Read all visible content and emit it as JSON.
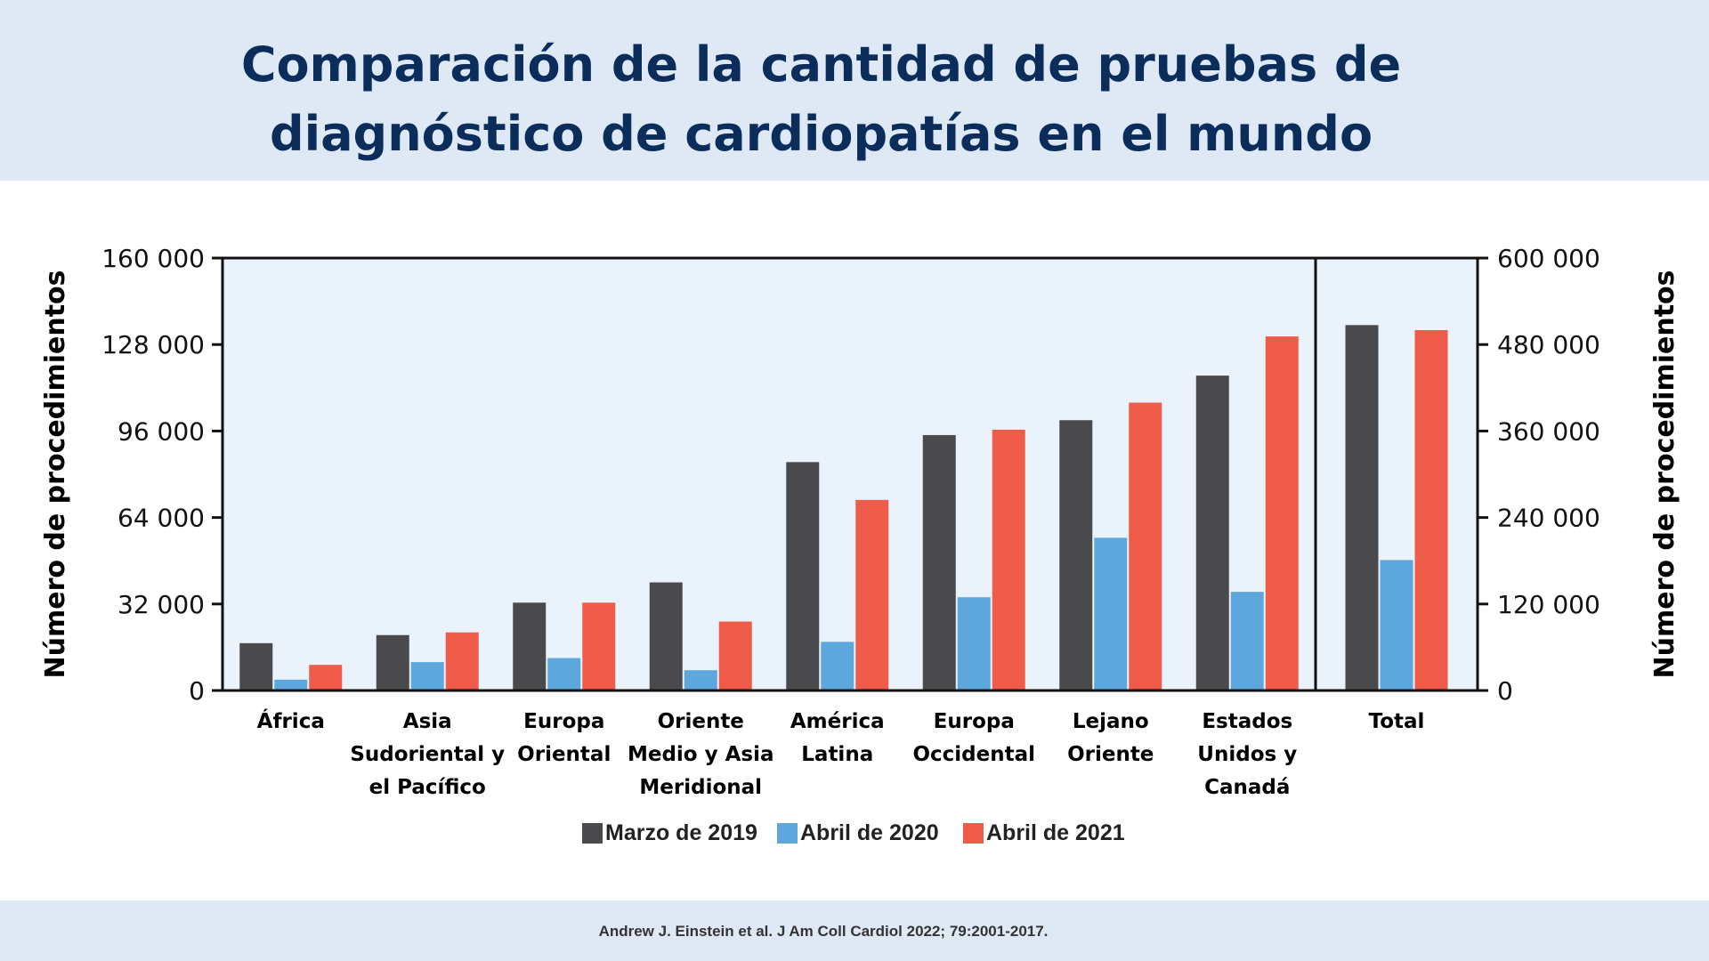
{
  "title_lines": [
    "Comparación de la cantidad de pruebas de",
    "diagnóstico de cardiopatías en el mundo"
  ],
  "citation": "Andrew J. Einstein et al. J Am Coll Cardiol 2022; 79:2001-2017.",
  "colors": {
    "background": "#ffffff",
    "header_band": "#dfe9f6",
    "plot_area": "#eaf2fb",
    "title": "#0b2d5c",
    "marzo_2019": "#4a4a4c",
    "abril_2020": "#5ea7dc",
    "abril_2021": "#ef5c4a"
  },
  "chart_data": {
    "type": "bar",
    "title": "Comparación de la cantidad de pruebas de diagnóstico de cardiopatías en el mundo",
    "ylabel": "Número de procedimientos",
    "ylabel_right": "Número de procedimientos",
    "legend_position": "bottom",
    "grid": false,
    "series_names": [
      "Marzo de 2019",
      "Abril de 2020",
      "Abril de 2021"
    ],
    "left_axis": {
      "ylim": [
        0,
        160000
      ],
      "ticks": [
        0,
        32000,
        64000,
        96000,
        128000,
        160000
      ],
      "tick_labels": [
        "0",
        "32 000",
        "64 000",
        "96 000",
        "128 000",
        "160 000"
      ]
    },
    "right_axis": {
      "ylim": [
        0,
        600000
      ],
      "ticks": [
        0,
        120000,
        240000,
        360000,
        480000,
        600000
      ],
      "tick_labels": [
        "0",
        "120 000",
        "240 000",
        "360 000",
        "480 000",
        "600 000"
      ]
    },
    "categories": [
      {
        "label_lines": [
          "África"
        ],
        "values": [
          17500,
          4000,
          9500
        ],
        "axis": "left"
      },
      {
        "label_lines": [
          "Asia",
          "Sudoriental y",
          "el Pacífico"
        ],
        "values": [
          20500,
          10500,
          21500
        ],
        "axis": "left"
      },
      {
        "label_lines": [
          "Europa",
          "Oriental"
        ],
        "values": [
          32500,
          12000,
          32500
        ],
        "axis": "left"
      },
      {
        "label_lines": [
          "Oriente",
          "Medio y Asia",
          "Meridional"
        ],
        "values": [
          40000,
          7500,
          25500
        ],
        "axis": "left"
      },
      {
        "label_lines": [
          "América",
          "Latina"
        ],
        "values": [
          84500,
          18000,
          70500
        ],
        "axis": "left"
      },
      {
        "label_lines": [
          "Europa",
          "Occidental"
        ],
        "values": [
          94500,
          34500,
          96500
        ],
        "axis": "left"
      },
      {
        "label_lines": [
          "Lejano",
          "Oriente"
        ],
        "values": [
          100000,
          56500,
          106500
        ],
        "axis": "left"
      },
      {
        "label_lines": [
          "Estados",
          "Unidos y",
          "Canadá"
        ],
        "values": [
          116500,
          36500,
          131000
        ],
        "axis": "left"
      },
      {
        "label_lines": [
          "Total"
        ],
        "values": [
          507000,
          181000,
          500000
        ],
        "axis": "right"
      }
    ]
  }
}
